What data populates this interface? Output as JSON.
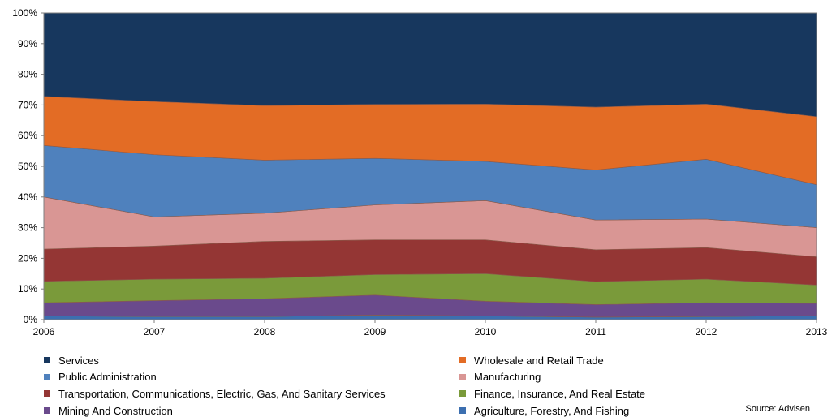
{
  "chart_data": {
    "type": "area",
    "stacked": "percent",
    "title": "",
    "xlabel": "",
    "ylabel": "",
    "x": [
      "2006",
      "2007",
      "2008",
      "2009",
      "2010",
      "2011",
      "2012",
      "2013"
    ],
    "y_ticks": [
      "0%",
      "10%",
      "20%",
      "30%",
      "40%",
      "50%",
      "60%",
      "70%",
      "80%",
      "90%",
      "100%"
    ],
    "ylim": [
      0,
      100
    ],
    "grid": false,
    "legend_position": "bottom",
    "series": [
      {
        "name": "Agriculture, Forestry, And Fishing",
        "color": "#3c6fb0",
        "values": [
          1.2,
          1.0,
          1.0,
          1.5,
          1.2,
          0.8,
          1.0,
          1.3
        ]
      },
      {
        "name": "Mining And Construction",
        "color": "#6a4a8c",
        "values": [
          4.3,
          5.2,
          5.8,
          6.5,
          4.8,
          4.1,
          4.5,
          4.0
        ]
      },
      {
        "name": "Finance, Insurance, And Real Estate",
        "color": "#7a9a3a",
        "values": [
          7.0,
          7.0,
          6.7,
          6.7,
          9.0,
          7.5,
          7.7,
          6.0
        ]
      },
      {
        "name": "Transportation, Communications, Electric, Gas, And Sanitary Services",
        "color": "#943634",
        "values": [
          10.5,
          10.8,
          12.0,
          11.3,
          11.0,
          10.4,
          10.3,
          9.2
        ]
      },
      {
        "name": "Manufacturing",
        "color": "#d99694",
        "values": [
          17.0,
          9.5,
          9.2,
          11.4,
          12.8,
          9.7,
          9.3,
          9.5
        ]
      },
      {
        "name": "Public Administration",
        "color": "#4f81bd",
        "values": [
          16.8,
          20.3,
          17.3,
          15.2,
          12.8,
          16.3,
          19.5,
          14.0
        ]
      },
      {
        "name": "Wholesale and Retail Trade",
        "color": "#e36c25",
        "values": [
          16.0,
          17.3,
          17.8,
          17.6,
          18.7,
          20.5,
          18.0,
          22.2
        ]
      },
      {
        "name": "Services",
        "color": "#17375e",
        "values": [
          27.2,
          28.9,
          30.2,
          29.8,
          29.7,
          30.7,
          29.7,
          33.8
        ]
      }
    ],
    "legend_order": [
      "Services",
      "Wholesale and Retail Trade",
      "Public Administration",
      "Manufacturing",
      "Transportation, Communications, Electric, Gas, And Sanitary Services",
      "Finance, Insurance, And Real Estate",
      "Mining And Construction",
      "Agriculture, Forestry, And Fishing"
    ],
    "source_note": "Source: Advisen"
  }
}
